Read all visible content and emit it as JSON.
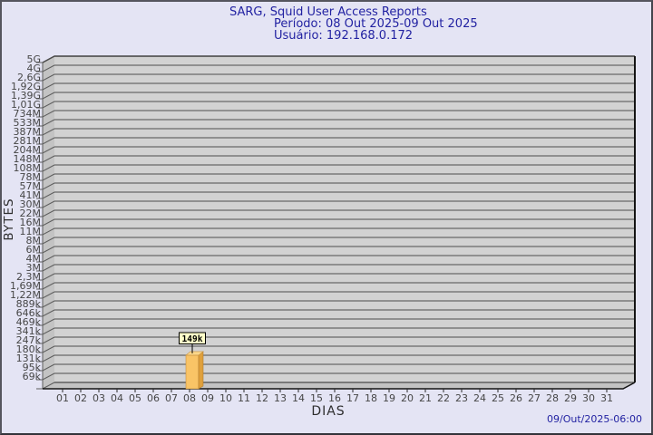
{
  "title": {
    "line1": "SARG, Squid User Access Reports",
    "line2": "Período: 08 Out 2025-09 Out 2025",
    "line3": "Usuário: 192.168.0.172"
  },
  "footer": {
    "timestamp": "09/Out/2025-06:00"
  },
  "chart_data": {
    "type": "bar",
    "title": "SARG, Squid User Access Reports",
    "subtitle": "Período: 08 Out 2025-09 Out 2025",
    "user": "192.168.0.172",
    "xlabel": "DIAS",
    "ylabel": "BYTES",
    "y_axis": {
      "scale": "log",
      "tick_labels": [
        "5G",
        "4G",
        "2,6G",
        "1,92G",
        "1,39G",
        "1,01G",
        "734M",
        "533M",
        "387M",
        "281M",
        "204M",
        "148M",
        "108M",
        "78M",
        "57M",
        "41M",
        "30M",
        "22M",
        "16M",
        "11M",
        "8M",
        "6M",
        "4M",
        "3M",
        "2,3M",
        "1,69M",
        "1,22M",
        "889k",
        "646k",
        "469k",
        "341k",
        "247k",
        "180k",
        "131k",
        "95k",
        "69k"
      ]
    },
    "x_axis": {
      "tick_labels": [
        "01",
        "02",
        "03",
        "04",
        "05",
        "06",
        "07",
        "08",
        "09",
        "10",
        "11",
        "12",
        "13",
        "14",
        "15",
        "16",
        "17",
        "18",
        "19",
        "20",
        "21",
        "22",
        "23",
        "24",
        "25",
        "26",
        "27",
        "28",
        "29",
        "30",
        "31"
      ]
    },
    "bars": [
      {
        "x": "08",
        "label": "149k",
        "value_bytes": 149000
      }
    ],
    "colors": {
      "background": "#e4e4f4",
      "plot_bg": "#d2d2d2",
      "wall": "#c3c3c3",
      "gridline": "#6a6a6a",
      "axis_text": "#464646",
      "title_text": "#2222a2",
      "bar_front": "#f9c466",
      "bar_side": "#dfa03c",
      "bar_top": "#fbd78a",
      "annotation_bg": "#ffffc9"
    }
  }
}
